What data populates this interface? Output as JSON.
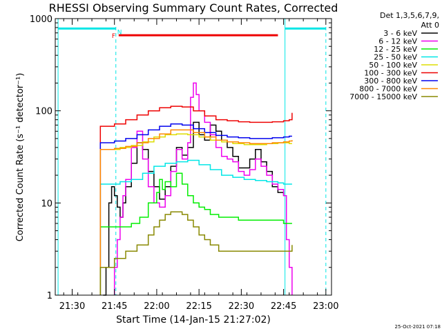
{
  "chart_data": {
    "type": "line",
    "title": "RHESSI Observing Summary Count Rates, Corrected",
    "xlabel": "Start Time (14-Jan-15 21:27:02)",
    "ylabel": "Corrected Count Rate (s⁻¹ detector⁻¹)",
    "yscale": "log",
    "ylim": [
      1,
      1000
    ],
    "xlim_minutes_after_start": [
      -3,
      95
    ],
    "y_ticks": [
      "1",
      "10",
      "100",
      "1000"
    ],
    "x_ticks": [
      {
        "label": "21:30",
        "t": 3
      },
      {
        "label": "21:45",
        "t": 18
      },
      {
        "label": "22:00",
        "t": 33
      },
      {
        "label": "22:15",
        "t": 48
      },
      {
        "label": "22:30",
        "t": 63
      },
      {
        "label": "22:45",
        "t": 78
      },
      {
        "label": "23:00",
        "t": 93
      }
    ],
    "legend": {
      "header": [
        "Det 1,3,5,6,7,9,",
        "Att 0"
      ],
      "placement": "right"
    },
    "night_marker_y": 780,
    "flare_flag": {
      "label": "F",
      "start": 19.5,
      "end": 76,
      "value": 660,
      "color": "#ee0000"
    },
    "night_flag_label": "N",
    "night_intervals": [
      [
        -2,
        18.5
      ],
      [
        78.5,
        93
      ]
    ],
    "dashed_lines": [
      18.5,
      93
    ],
    "solid_lines": [
      -2,
      78.5
    ],
    "series": [
      {
        "name": "3 - 6 keV",
        "color": "#000000",
        "t": [
          14,
          15,
          16,
          17,
          18,
          19,
          20,
          21,
          22,
          24,
          26,
          28,
          30,
          32,
          34,
          36,
          38,
          40,
          42,
          44,
          46,
          48,
          50,
          52,
          54,
          56,
          58,
          60,
          62,
          64,
          66,
          68,
          70,
          72,
          74,
          76,
          78
        ],
        "y": [
          1,
          2,
          10,
          15,
          12,
          9,
          7,
          10,
          15,
          27,
          45,
          38,
          22,
          15,
          11,
          15,
          25,
          40,
          33,
          40,
          75,
          55,
          48,
          70,
          60,
          48,
          40,
          32,
          24,
          24,
          30,
          38,
          28,
          22,
          15,
          13,
          12
        ]
      },
      {
        "name": "6 - 12 keV",
        "color": "#ee00ee",
        "t": [
          18,
          19,
          20,
          21,
          22,
          24,
          26,
          28,
          30,
          32,
          34,
          36,
          38,
          40,
          42,
          44,
          45,
          46,
          47,
          48,
          50,
          52,
          54,
          56,
          58,
          60,
          62,
          64,
          66,
          68,
          70,
          72,
          74,
          76,
          78,
          79,
          80,
          81
        ],
        "y": [
          2,
          4,
          7,
          12,
          18,
          40,
          60,
          30,
          15,
          10,
          9,
          12,
          22,
          38,
          30,
          45,
          140,
          200,
          150,
          100,
          75,
          55,
          40,
          32,
          30,
          28,
          22,
          20,
          23,
          30,
          25,
          20,
          16,
          14,
          12,
          4,
          2,
          1
        ]
      },
      {
        "name": "12 - 25 keV",
        "color": "#00ee00",
        "t": [
          13,
          20,
          24,
          27,
          30,
          33,
          34,
          35,
          36,
          38,
          40,
          42,
          44,
          46,
          48,
          50,
          52,
          55,
          58,
          62,
          66,
          70,
          74,
          78,
          80,
          81
        ],
        "y": [
          5.5,
          5.5,
          6,
          7,
          10,
          13,
          18,
          14,
          17,
          15,
          21,
          16,
          12,
          10,
          9,
          8.5,
          7.5,
          7,
          7,
          6.5,
          6.5,
          6.5,
          6.5,
          6,
          6,
          6
        ]
      },
      {
        "name": "25 - 50 keV",
        "color": "#00e6e6",
        "t": [
          13,
          20,
          24,
          28,
          32,
          36,
          40,
          44,
          48,
          52,
          56,
          60,
          64,
          68,
          72,
          76,
          78,
          80,
          81
        ],
        "y": [
          16,
          17,
          18,
          21,
          25,
          27,
          28,
          29,
          26,
          23,
          20,
          19,
          18,
          17.5,
          17,
          16.5,
          16,
          16,
          16
        ]
      },
      {
        "name": "50 - 100 keV",
        "color": "#dddd00",
        "t": [
          13,
          20,
          24,
          28,
          32,
          36,
          40,
          44,
          48,
          52,
          56,
          60,
          64,
          68,
          72,
          76,
          78,
          80,
          81
        ],
        "y": [
          38,
          40,
          42,
          46,
          52,
          55,
          56,
          55,
          52,
          48,
          46,
          44,
          43,
          43,
          44,
          45,
          45,
          44,
          44
        ]
      },
      {
        "name": "100 - 300 keV",
        "color": "#ee0000",
        "t": [
          13,
          18,
          22,
          26,
          30,
          34,
          38,
          42,
          46,
          50,
          54,
          58,
          62,
          66,
          70,
          74,
          78,
          80,
          81
        ],
        "y": [
          68,
          72,
          80,
          90,
          100,
          108,
          112,
          110,
          100,
          88,
          80,
          78,
          76,
          75,
          75,
          76,
          78,
          80,
          95
        ]
      },
      {
        "name": "300 - 800 keV",
        "color": "#0000ee",
        "t": [
          13,
          18,
          22,
          26,
          30,
          34,
          38,
          42,
          46,
          50,
          54,
          58,
          62,
          66,
          70,
          74,
          78,
          80,
          81
        ],
        "y": [
          45,
          47,
          50,
          55,
          62,
          68,
          72,
          70,
          64,
          58,
          54,
          52,
          51,
          50,
          50,
          51,
          52,
          53,
          53
        ]
      },
      {
        "name": "800 - 7000 keV",
        "color": "#ff8800",
        "t": [
          13,
          18,
          22,
          26,
          30,
          34,
          38,
          42,
          46,
          50,
          54,
          58,
          62,
          66,
          70,
          74,
          78,
          80,
          81
        ],
        "y": [
          38,
          39,
          41,
          45,
          50,
          56,
          62,
          62,
          58,
          52,
          48,
          46,
          45,
          44,
          44,
          45,
          46,
          47,
          48
        ]
      },
      {
        "name": "7000 - 15000 keV",
        "color": "#888800",
        "t": [
          13,
          18,
          22,
          26,
          30,
          32,
          34,
          36,
          38,
          40,
          42,
          44,
          46,
          48,
          50,
          52,
          55,
          58,
          62,
          66,
          70,
          74,
          78,
          80,
          81
        ],
        "y": [
          2,
          2.5,
          3,
          3.5,
          4.5,
          5.5,
          6.5,
          7.5,
          8,
          8,
          7.5,
          6.5,
          5.5,
          4.5,
          4,
          3.5,
          3,
          3,
          3,
          3,
          3,
          3,
          3,
          3,
          3.5
        ]
      }
    ]
  },
  "footer": {
    "timestamp": "25-Oct-2021 07:18"
  }
}
